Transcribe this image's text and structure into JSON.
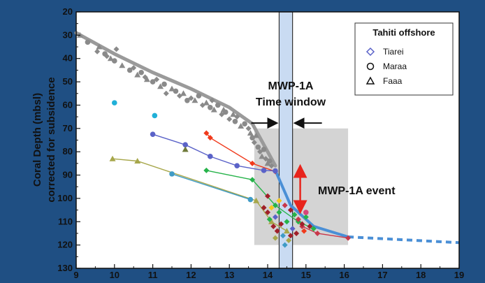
{
  "chart_data": {
    "type": "scatter",
    "ylabel_line1": "Coral Depth (mbsl)",
    "ylabel_line2": "corrected for subsidence",
    "xlim": [
      9,
      19
    ],
    "ylim": [
      20,
      130
    ],
    "y_inverted": true,
    "xticks": [
      "9",
      "10",
      "11",
      "12",
      "13",
      "14",
      "15",
      "16",
      "17",
      "18",
      "19"
    ],
    "yticks": [
      "20",
      "30",
      "40",
      "50",
      "60",
      "70",
      "80",
      "90",
      "100",
      "110",
      "120",
      "130"
    ],
    "legend": {
      "title": "Tahiti offshore",
      "position": "top-right",
      "items": [
        {
          "label": "Tiarei",
          "marker": "diamond"
        },
        {
          "label": "Maraa",
          "marker": "circle"
        },
        {
          "label": "Faaa",
          "marker": "triangle"
        }
      ]
    },
    "annotations": {
      "window_title_line1": "MWP-1A",
      "window_title_line2": "Time window",
      "event_label": "MWP-1A event"
    },
    "shaded_region": {
      "x": [
        13.65,
        16.1
      ],
      "y": [
        70,
        120
      ]
    },
    "time_window": {
      "x": [
        14.3,
        14.65
      ]
    },
    "series": [
      {
        "color": "#f03a1c",
        "marker": "diamond",
        "points": [
          [
            12.4,
            72
          ],
          [
            12.5,
            74
          ],
          [
            13.6,
            85
          ],
          [
            14.2,
            88.5
          ]
        ]
      },
      {
        "color": "#5a62c8",
        "marker": "circle",
        "points": [
          [
            11.0,
            72.5
          ],
          [
            11.85,
            77
          ],
          [
            12.5,
            82
          ],
          [
            13.2,
            86
          ],
          [
            13.9,
            88
          ],
          [
            14.2,
            88.2
          ]
        ]
      },
      {
        "color": "#26b34a",
        "marker": "diamond",
        "points": [
          [
            12.4,
            88
          ],
          [
            13.6,
            92
          ],
          [
            14.2,
            103
          ],
          [
            14.8,
            110
          ],
          [
            15.2,
            113
          ]
        ]
      },
      {
        "color": "#a7a74b",
        "marker": "triangle",
        "points": [
          [
            9.95,
            83
          ],
          [
            10.6,
            84
          ],
          [
            13.7,
            101
          ],
          [
            14.1,
            110
          ],
          [
            14.5,
            114
          ]
        ]
      },
      {
        "color": "#3f9bc6",
        "marker": "circle",
        "points": [
          [
            11.5,
            89.5
          ],
          [
            13.55,
            100.5
          ]
        ]
      },
      {
        "color": "#c8374a",
        "marker": "diamond",
        "points": [
          [
            14.9,
            112
          ],
          [
            15.3,
            115
          ],
          [
            16.1,
            117
          ]
        ]
      }
    ],
    "mwp_curve": [
      [
        14.2,
        88
      ],
      [
        14.6,
        103
      ],
      [
        15.2,
        112
      ],
      [
        16.1,
        116.5
      ]
    ],
    "trend_line": [
      [
        9.0,
        29
      ],
      [
        10.0,
        38
      ],
      [
        11.0,
        46
      ],
      [
        12.0,
        53
      ],
      [
        13.0,
        61
      ],
      [
        13.6,
        68
      ],
      [
        14.2,
        86
      ]
    ],
    "extension_line": [
      [
        16.1,
        116.5
      ],
      [
        19,
        119
      ]
    ],
    "gray_points": [
      [
        9.1,
        30
      ],
      [
        9.3,
        33
      ],
      [
        9.55,
        37
      ],
      [
        9.6,
        35
      ],
      [
        9.75,
        38
      ],
      [
        9.8,
        39
      ],
      [
        9.9,
        40
      ],
      [
        10.0,
        41
      ],
      [
        10.05,
        36
      ],
      [
        10.2,
        43
      ],
      [
        10.4,
        45
      ],
      [
        10.5,
        44
      ],
      [
        10.6,
        47
      ],
      [
        10.7,
        46
      ],
      [
        10.8,
        48
      ],
      [
        10.85,
        49
      ],
      [
        11.0,
        50
      ],
      [
        11.1,
        49
      ],
      [
        11.2,
        52
      ],
      [
        11.3,
        51
      ],
      [
        11.35,
        55
      ],
      [
        11.5,
        53
      ],
      [
        11.6,
        54
      ],
      [
        11.7,
        56
      ],
      [
        11.8,
        55
      ],
      [
        11.9,
        58
      ],
      [
        12.0,
        57
      ],
      [
        12.1,
        58
      ],
      [
        12.2,
        56
      ],
      [
        12.3,
        60
      ],
      [
        12.4,
        59
      ],
      [
        12.5,
        61
      ],
      [
        12.55,
        58
      ],
      [
        12.6,
        62
      ],
      [
        12.7,
        60
      ],
      [
        12.8,
        64
      ],
      [
        12.85,
        62
      ],
      [
        12.9,
        63
      ],
      [
        13.0,
        66
      ],
      [
        13.1,
        64
      ],
      [
        13.15,
        67
      ],
      [
        13.2,
        65
      ],
      [
        13.3,
        69
      ],
      [
        13.4,
        68
      ],
      [
        13.5,
        70
      ],
      [
        13.55,
        72
      ],
      [
        13.6,
        74
      ],
      [
        13.65,
        76
      ],
      [
        13.7,
        73
      ],
      [
        13.75,
        78
      ],
      [
        13.8,
        80
      ],
      [
        13.85,
        82
      ],
      [
        13.9,
        79
      ],
      [
        13.95,
        83
      ],
      [
        14.0,
        85
      ],
      [
        14.05,
        84
      ],
      [
        14.1,
        86
      ]
    ],
    "cluster_points": [
      [
        13.9,
        104,
        "#a0202a"
      ],
      [
        14.0,
        106,
        "#a0202a"
      ],
      [
        14.05,
        109,
        "#26b34a"
      ],
      [
        14.1,
        104,
        "#f7c81c"
      ],
      [
        14.15,
        112,
        "#a0202a"
      ],
      [
        14.2,
        108,
        "#5a62c8"
      ],
      [
        14.25,
        114,
        "#a0202a"
      ],
      [
        14.3,
        106,
        "#26b34a"
      ],
      [
        14.35,
        111,
        "#a0202a"
      ],
      [
        14.4,
        116,
        "#3f9bc6"
      ],
      [
        14.45,
        103,
        "#c8374a"
      ],
      [
        14.5,
        110,
        "#26b34a"
      ],
      [
        14.55,
        118,
        "#a7a74b"
      ],
      [
        14.6,
        105,
        "#a0202a"
      ],
      [
        14.65,
        113,
        "#5a62c8"
      ],
      [
        14.7,
        107,
        "#26b34a"
      ],
      [
        14.75,
        115,
        "#a0202a"
      ],
      [
        14.8,
        109,
        "#c8374a"
      ],
      [
        14.85,
        104,
        "#26b34a"
      ],
      [
        14.9,
        111,
        "#a0202a"
      ],
      [
        14.95,
        114,
        "#f03a1c"
      ],
      [
        15.0,
        108,
        "#26b34a"
      ],
      [
        15.1,
        112,
        "#a0202a"
      ],
      [
        14.3,
        101,
        "#f7c81c"
      ],
      [
        14.0,
        99,
        "#a0202a"
      ],
      [
        14.2,
        117,
        "#a7a74b"
      ],
      [
        14.45,
        120,
        "#3f9bc6"
      ],
      [
        14.6,
        116,
        "#a0202a"
      ]
    ],
    "isolated_points": [
      [
        10.0,
        59,
        "#20b0d8",
        "circle"
      ],
      [
        11.05,
        64.5,
        "#20b0d8",
        "circle"
      ],
      [
        11.85,
        79,
        "#6f7a3a",
        "triangle"
      ],
      [
        15.0,
        106,
        "#d8447a",
        "circle"
      ]
    ]
  }
}
